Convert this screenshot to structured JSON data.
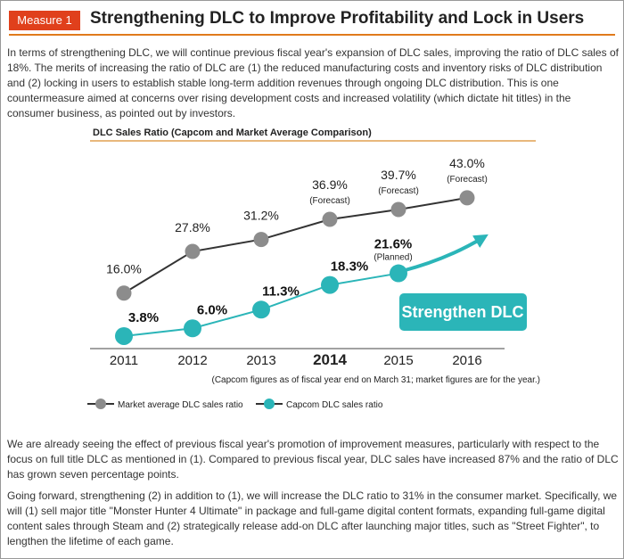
{
  "header": {
    "badge": "Measure 1",
    "title": "Strengthening DLC to Improve Profitability and Lock in Users"
  },
  "paragraphs": [
    "In terms of strengthening DLC, we will continue previous fiscal year's expansion of DLC sales, improving the ratio of DLC sales of 18%. The merits of increasing the ratio of DLC are (1) the reduced manufacturing costs and inventory risks of DLC distribution and (2) locking in users to establish stable long-term addition revenues through ongoing DLC distribution. This is one countermeasure aimed at concerns over rising development costs and increased volatility (which dictate hit titles) in the consumer business, as pointed out by investors.",
    "We are already seeing the effect of previous fiscal year's promotion of improvement measures, particularly with respect to the focus on full title DLC as mentioned in (1). Compared to previous fiscal year, DLC sales have increased 87% and the ratio of DLC has grown seven percentage points.",
    "Going forward, strengthening (2) in addition to (1), we will increase the DLC ratio to 31% in the consumer market. Specifically, we will (1) sell major title \"Monster Hunter 4 Ultimate\" in package and full-game digital content formats, expanding full-game digital content sales through Steam and (2) strategically release add-on DLC after launching major titles, such as \"Street Fighter\", to lengthen the lifetime of each game."
  ],
  "chart_data": {
    "type": "line",
    "title": "DLC Sales Ratio (Capcom and Market Average Comparison)",
    "categories": [
      "2011",
      "2012",
      "2013",
      "2014",
      "2015",
      "2016"
    ],
    "highlight": "2014",
    "series": [
      {
        "name": "Market average DLC sales ratio",
        "color": "#8c8c8c",
        "values": [
          16.0,
          27.8,
          31.2,
          36.9,
          39.7,
          43.0
        ],
        "value_labels": [
          "16.0%",
          "27.8%",
          "31.2%",
          "36.9%",
          "39.7%",
          "43.0%"
        ],
        "value_notes": [
          null,
          null,
          null,
          "(Forecast)",
          "(Forecast)",
          "(Forecast)"
        ]
      },
      {
        "name": "Capcom DLC sales ratio",
        "color": "#2bb5b8",
        "values": [
          3.8,
          6.0,
          11.3,
          18.3,
          21.6,
          null
        ],
        "value_labels": [
          "3.8%",
          "6.0%",
          "11.3%",
          "18.3%",
          "21.6%",
          null
        ],
        "value_notes": [
          null,
          null,
          null,
          null,
          "(Planned)",
          null
        ]
      }
    ],
    "ylim": [
      0,
      45
    ],
    "annotation": "Strengthen DLC",
    "footnote": "(Capcom figures as of fiscal year end on March 31; market figures are for the year.)"
  }
}
